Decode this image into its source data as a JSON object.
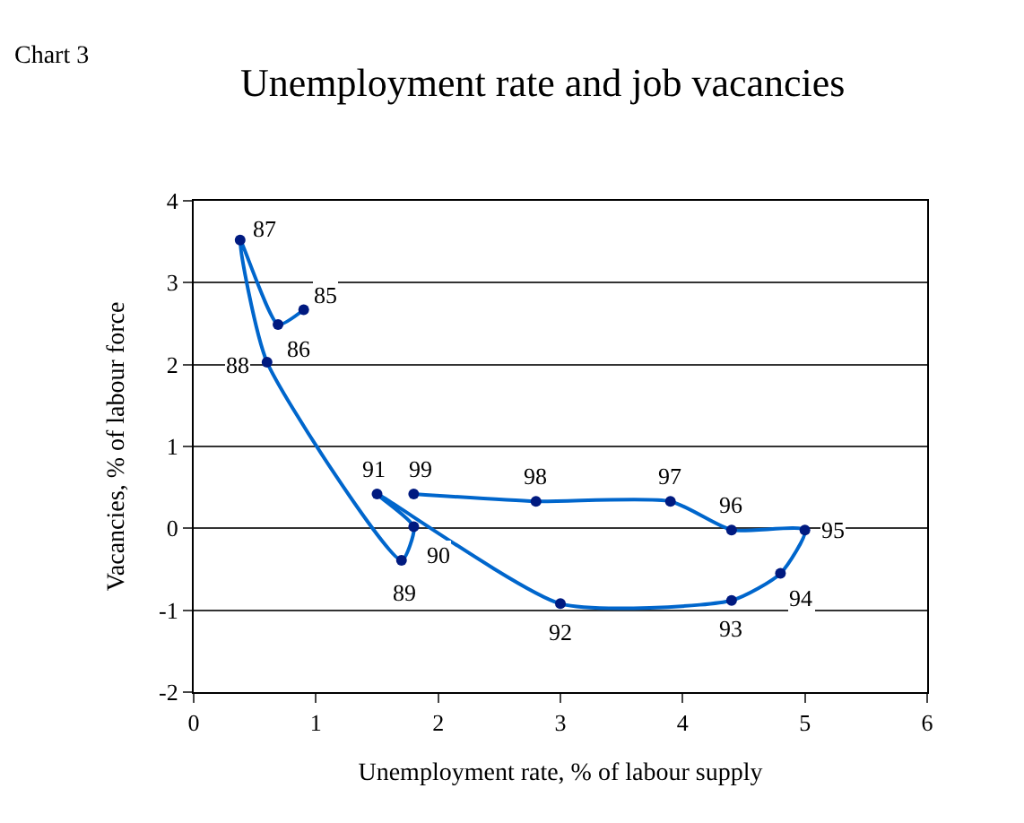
{
  "chart_data": {
    "type": "line",
    "title": "Unemployment rate and job vacancies",
    "xlabel": "Unemployment rate, % of labour supply",
    "ylabel": "Vacancies, % of labour force",
    "annotations": [
      "Chart 3",
      {
        "text": "85",
        "x": 0.9,
        "y": 2.67
      },
      {
        "text": "86",
        "x": 0.69,
        "y": 2.49
      },
      {
        "text": "87",
        "x": 0.38,
        "y": 3.52
      },
      {
        "text": "88",
        "x": 0.6,
        "y": 2.03
      },
      {
        "text": "89",
        "x": 1.7,
        "y": -0.39
      },
      {
        "text": "90",
        "x": 1.8,
        "y": 0.02
      },
      {
        "text": "91",
        "x": 1.5,
        "y": 0.42
      },
      {
        "text": "92",
        "x": 3.0,
        "y": -0.92
      },
      {
        "text": "93",
        "x": 4.4,
        "y": -0.88
      },
      {
        "text": "94",
        "x": 4.8,
        "y": -0.55
      },
      {
        "text": "95",
        "x": 5.0,
        "y": -0.02
      },
      {
        "text": "96",
        "x": 4.4,
        "y": -0.02
      },
      {
        "text": "97",
        "x": 3.9,
        "y": 0.33
      },
      {
        "text": "98",
        "x": 2.8,
        "y": 0.33
      },
      {
        "text": "99",
        "x": 1.8,
        "y": 0.42
      }
    ],
    "x": [
      0.9,
      0.69,
      0.38,
      0.6,
      1.7,
      1.8,
      1.5,
      3.0,
      4.4,
      4.8,
      5.0,
      4.4,
      3.9,
      2.8,
      1.8
    ],
    "series": [
      {
        "color": "#0066cc",
        "values": [
          2.67,
          2.49,
          3.52,
          2.03,
          -0.39,
          0.02,
          0.42,
          -0.92,
          -0.88,
          -0.55,
          -0.02,
          -0.02,
          0.33,
          0.33,
          0.42
        ]
      }
    ],
    "xlim": [
      0,
      6
    ],
    "xticks": [
      0,
      1,
      2,
      3,
      4,
      5,
      6
    ],
    "ylim": [
      -2,
      4
    ],
    "yticks": [
      -2,
      -1,
      0,
      1,
      2,
      3,
      4
    ],
    "grid": "y",
    "marker": "circle",
    "line_style": "solid"
  }
}
